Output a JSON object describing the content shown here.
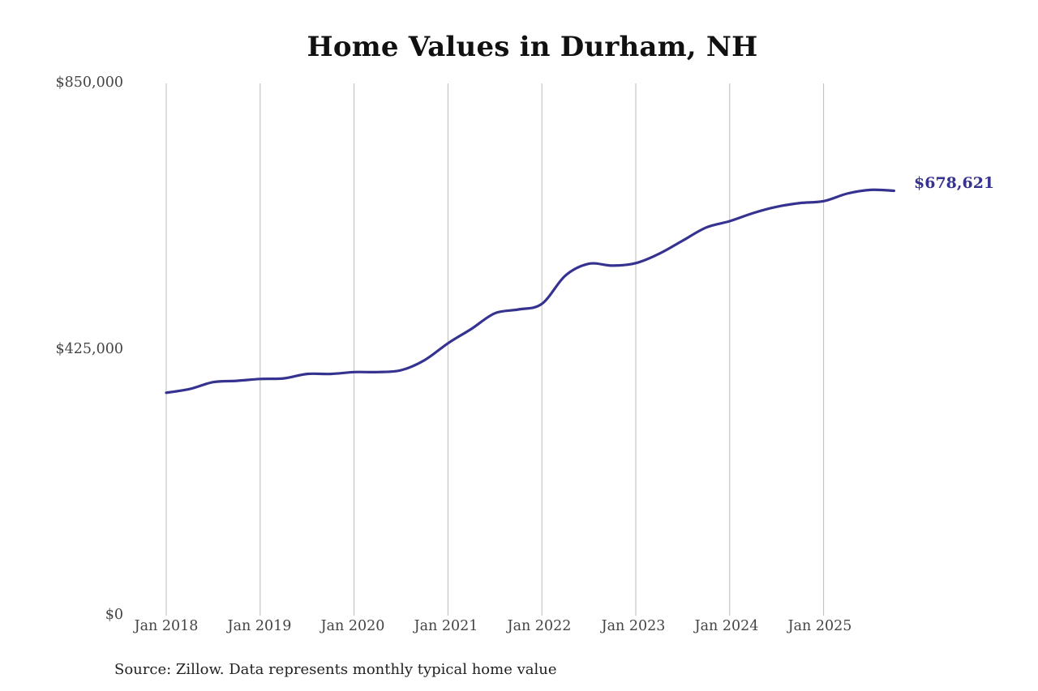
{
  "chart_data": {
    "type": "line",
    "title": "Home Values in Durham, NH",
    "xlabel": "",
    "ylabel": "",
    "ylim": [
      0,
      850000
    ],
    "yticks": [
      0,
      425000,
      850000
    ],
    "ytick_labels": [
      "$0",
      "$425,000",
      "$850,000"
    ],
    "xtick_labels": [
      "Jan 2018",
      "Jan 2019",
      "Jan 2020",
      "Jan 2021",
      "Jan 2022",
      "Jan 2023",
      "Jan 2024",
      "Jan 2025"
    ],
    "grid": {
      "vertical": true,
      "horizontal": false
    },
    "legend": null,
    "series": [
      {
        "name": "Typical home value",
        "color": "#35338f",
        "x": [
          "2018-01",
          "2018-04",
          "2018-07",
          "2018-10",
          "2019-01",
          "2019-04",
          "2019-07",
          "2019-10",
          "2020-01",
          "2020-04",
          "2020-07",
          "2020-10",
          "2021-01",
          "2021-04",
          "2021-07",
          "2021-10",
          "2022-01",
          "2022-04",
          "2022-07",
          "2022-10",
          "2023-01",
          "2023-04",
          "2023-07",
          "2023-10",
          "2024-01",
          "2024-04",
          "2024-07",
          "2024-10",
          "2025-01",
          "2025-04",
          "2025-07",
          "2025-10"
        ],
        "values": [
          356000,
          362000,
          373000,
          375000,
          378000,
          379000,
          386000,
          386000,
          389000,
          389000,
          392000,
          408000,
          435000,
          458000,
          483000,
          489000,
          498000,
          543000,
          562000,
          559000,
          563000,
          578000,
          599000,
          620000,
          630000,
          643000,
          653000,
          659000,
          662000,
          674000,
          680000,
          678621
        ]
      }
    ],
    "annotations": [
      {
        "text": "$678,621",
        "x": "2025-10",
        "y": 678621
      }
    ]
  },
  "title": "Home Values in Durham, NH",
  "y_axis": {
    "labels": [
      "$850,000",
      "$425,000",
      "$0"
    ]
  },
  "x_axis": {
    "labels": [
      "Jan 2018",
      "Jan 2019",
      "Jan 2020",
      "Jan 2021",
      "Jan 2022",
      "Jan 2023",
      "Jan 2024",
      "Jan 2025"
    ]
  },
  "end_value_label": "$678,621",
  "source": "Source: Zillow. Data represents monthly typical home value",
  "colors": {
    "line": "#35338f",
    "grid": "#bbbbbb",
    "axis_text": "#444444",
    "title": "#111111"
  }
}
